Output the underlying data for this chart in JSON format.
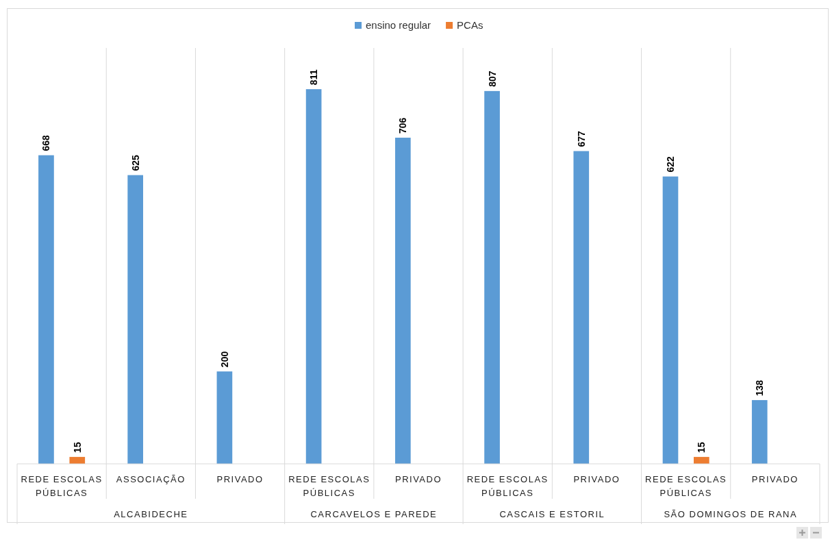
{
  "chart_data": {
    "type": "bar",
    "categories": [
      "REDE ESCOLAS PÚBLICAS",
      "ASSOCIAÇÃO",
      "PRIVADO",
      "REDE ESCOLAS PÚBLICAS",
      "PRIVADO",
      "REDE ESCOLAS PÚBLICAS",
      "PRIVADO",
      "REDE ESCOLAS PÚBLICAS",
      "PRIVADO"
    ],
    "series": [
      {
        "name": "ensino regular",
        "color": "#5b9bd5",
        "values": [
          668,
          625,
          200,
          811,
          706,
          807,
          677,
          622,
          138
        ]
      },
      {
        "name": "PCAs",
        "color": "#ed7d31",
        "values": [
          15,
          null,
          null,
          null,
          null,
          null,
          null,
          15,
          null
        ]
      }
    ],
    "annotations": [
      "ALCABIDECHE",
      "CARCAVELOS E PAREDE",
      "CASCAIS E ESTORIL",
      "SÃO DOMINGOS DE RANA"
    ],
    "data_labels": true,
    "legend": "top"
  }
}
